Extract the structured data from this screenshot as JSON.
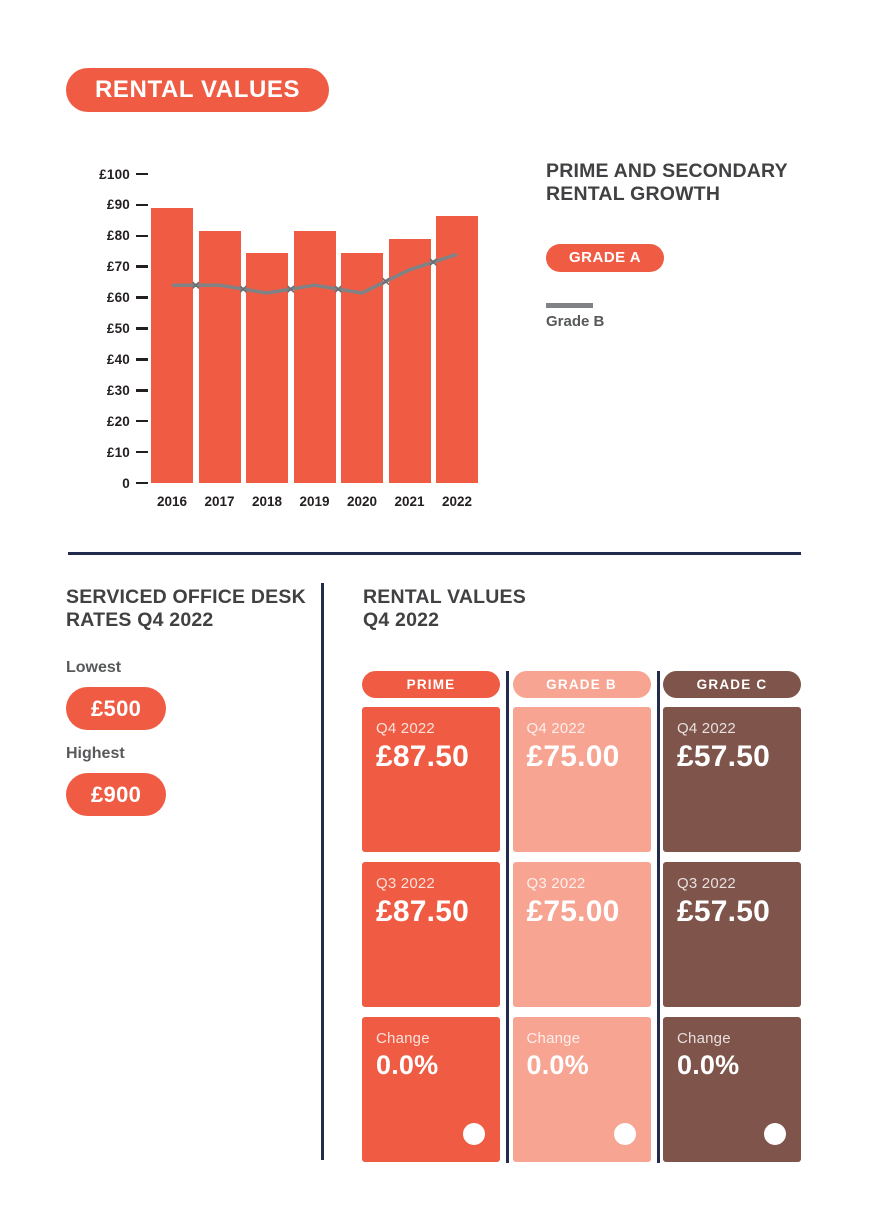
{
  "badge": {
    "label": "RENTAL VALUES"
  },
  "colors": {
    "coral": "#F05C43",
    "salmon": "#F7A492",
    "brown": "#7E544B",
    "navy": "#222B4D",
    "heading_charcoal": "#414042",
    "label_gray": "#58595B",
    "line_gray": "#808285",
    "axis_text": "#231F20"
  },
  "chart_section": {
    "heading_line1": "PRIME AND SECONDARY",
    "heading_line2": "RENTAL GROWTH",
    "legend": {
      "grade_a_label": "GRADE A",
      "grade_b_label": "Grade B"
    }
  },
  "chart_data": {
    "type": "bar",
    "title": "Prime and secondary rental growth",
    "categories": [
      "2016",
      "2017",
      "2018",
      "2019",
      "2020",
      "2021",
      "2022"
    ],
    "series": [
      {
        "name": "Grade A",
        "type": "bar",
        "color": "#F05C43",
        "values": [
          89,
          81.5,
          74.5,
          81.5,
          74.5,
          79,
          86.5
        ]
      },
      {
        "name": "Grade B",
        "type": "line",
        "color": "#808285",
        "values": [
          64,
          64,
          61.5,
          64,
          61.5,
          69,
          74
        ]
      }
    ],
    "ylabels": [
      "£100",
      "£90",
      "£80",
      "£70",
      "£60",
      "£50",
      "£40",
      "£30",
      "£20",
      "£10",
      "0"
    ],
    "ylim": [
      0,
      100
    ],
    "currency": "£",
    "grid": false,
    "legend_position": "right"
  },
  "desk_rates": {
    "heading_line1": "SERVICED OFFICE DESK",
    "heading_line2": "RATES Q4 2022",
    "lowest_label": "Lowest",
    "lowest_value": "£500",
    "highest_label": "Highest",
    "highest_value": "£900"
  },
  "rental_values": {
    "heading_line1": "RENTAL VALUES",
    "heading_line2": "Q4 2022",
    "columns": [
      {
        "label": "PRIME",
        "color": "#F05C43",
        "cards": [
          {
            "label": "Q4 2022",
            "value": "£87.50"
          },
          {
            "label": "Q3 2022",
            "value": "£87.50"
          },
          {
            "label": "Change",
            "value": "0.0%",
            "dot": true
          }
        ]
      },
      {
        "label": "GRADE B",
        "color": "#F7A492",
        "cards": [
          {
            "label": "Q4 2022",
            "value": "£75.00"
          },
          {
            "label": "Q3 2022",
            "value": "£75.00"
          },
          {
            "label": "Change",
            "value": "0.0%",
            "dot": true
          }
        ]
      },
      {
        "label": "GRADE C",
        "color": "#7E544B",
        "cards": [
          {
            "label": "Q4 2022",
            "value": "£57.50"
          },
          {
            "label": "Q3 2022",
            "value": "£57.50"
          },
          {
            "label": "Change",
            "value": "0.0%",
            "dot": true
          }
        ]
      }
    ]
  }
}
